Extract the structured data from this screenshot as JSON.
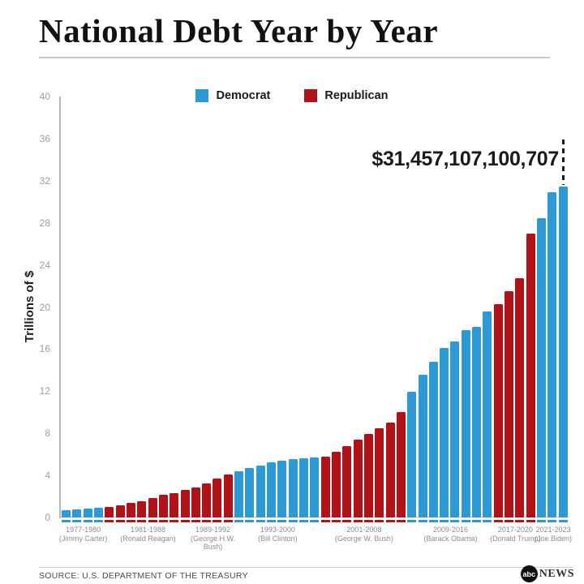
{
  "header": {
    "title": "National Debt Year by Year"
  },
  "legend": [
    {
      "label": "Democrat",
      "color": "#2E9AD5"
    },
    {
      "label": "Republican",
      "color": "#B11217"
    }
  ],
  "chart_data": {
    "type": "bar",
    "title": "National Debt Year by Year",
    "ylabel": "Trillions of $",
    "ylim": [
      0,
      40
    ],
    "yticks": [
      0,
      4,
      8,
      12,
      16,
      20,
      24,
      28,
      32,
      36,
      40
    ],
    "grid": false,
    "legend_position": "top-center",
    "party_colors": {
      "Democrat": "#2E9AD5",
      "Republican": "#B11217"
    },
    "groups": [
      {
        "term": "1977-1980",
        "president": "(Jimmy Carter)",
        "party": "Democrat",
        "values": [
          0.7,
          0.77,
          0.83,
          0.91
        ]
      },
      {
        "term": "1981-1988",
        "president": "(Ronald Reagan)",
        "party": "Republican",
        "values": [
          1.0,
          1.14,
          1.38,
          1.57,
          1.82,
          2.13,
          2.35,
          2.6
        ]
      },
      {
        "term": "1989-1992",
        "president": "(George H.W. Bush)",
        "party": "Republican",
        "values": [
          2.86,
          3.23,
          3.67,
          4.06
        ]
      },
      {
        "term": "1993-2000",
        "president": "(Bill Clinton)",
        "party": "Democrat",
        "values": [
          4.41,
          4.69,
          4.97,
          5.22,
          5.41,
          5.53,
          5.66,
          5.67
        ]
      },
      {
        "term": "2001-2008",
        "president": "(George W. Bush)",
        "party": "Republican",
        "values": [
          5.81,
          6.23,
          6.78,
          7.38,
          7.93,
          8.51,
          9.01,
          10.02
        ]
      },
      {
        "term": "2009-2016",
        "president": "(Barack Obama)",
        "party": "Democrat",
        "values": [
          11.91,
          13.56,
          14.79,
          16.07,
          16.74,
          17.82,
          18.15,
          19.57
        ]
      },
      {
        "term": "2017-2020",
        "president": "(Donald Trump)",
        "party": "Republican",
        "values": [
          20.24,
          21.52,
          22.72,
          26.95
        ]
      },
      {
        "term": "2021-2023",
        "president": "(Joe Biden)",
        "party": "Democrat",
        "values": [
          28.43,
          30.93,
          31.46
        ]
      }
    ],
    "annotation": {
      "text": "$31,457,107,100,707",
      "points_to": "2023 bar",
      "value_trillions": 31.46
    }
  },
  "footer": {
    "source": "SOURCE: U.S. DEPARTMENT OF THE TREASURY",
    "brand": {
      "circle_text": "abc",
      "wordmark": "NEWS"
    }
  }
}
